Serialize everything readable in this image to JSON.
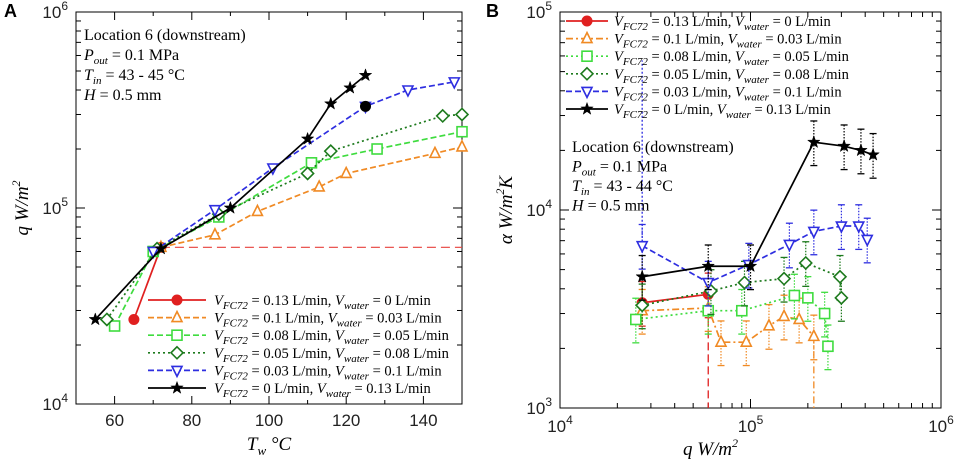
{
  "chart_data": [
    {
      "panel": "A",
      "type": "line",
      "xlabel": "T_w °C",
      "ylabel": "q W/m²",
      "xscale": "linear",
      "yscale": "log",
      "xlim": [
        50,
        150
      ],
      "ylim": [
        10000,
        1000000
      ],
      "xticks": [
        60,
        80,
        100,
        120,
        140
      ],
      "yticks": [
        10000,
        100000,
        1000000
      ],
      "ytick_labels": [
        {
          "base": "10",
          "exp": "4"
        },
        {
          "base": "10",
          "exp": "5"
        },
        {
          "base": "10",
          "exp": "6"
        }
      ],
      "annotation": [
        "Location 6 (downstream)",
        "P_out = 0.1 MPa",
        "T_in = 43 - 45 °C",
        "H = 0.5 mm"
      ],
      "annotation_parts": [
        [
          {
            "t": "Location 6 (downstream)"
          }
        ],
        [
          {
            "t": "P",
            "i": true
          },
          {
            "t": "out",
            "i": true,
            "sub": true
          },
          {
            "t": " = 0.1 MPa"
          }
        ],
        [
          {
            "t": "T",
            "i": true
          },
          {
            "t": "in",
            "i": true,
            "sub": true
          },
          {
            "t": " = 43 - 45 °C"
          }
        ],
        [
          {
            "t": "H",
            "i": true
          },
          {
            "t": " = 0.5 mm"
          }
        ]
      ],
      "reference_line": {
        "y": 63000,
        "x_from": 72,
        "x_to": 150,
        "color": "#e8413c"
      },
      "legend_position": "bottom-right",
      "series": [
        {
          "name": "V_FC72 = 0.13 L/min, V_water = 0 L/min",
          "color": "#e02020",
          "marker": "circle",
          "dash": "solid",
          "x": [
            65,
            72
          ],
          "y": [
            27000,
            63000
          ]
        },
        {
          "name": "V_FC72 = 0.1 L/min, V_water = 0.03 L/min",
          "color": "#f08a24",
          "marker": "triangle-up",
          "dash": "dash",
          "x": [
            72,
            86,
            97,
            113,
            120,
            143,
            150
          ],
          "y": [
            63000,
            73000,
            96000,
            128000,
            150000,
            190000,
            205000
          ]
        },
        {
          "name": "V_FC72 = 0.08 L/min, V_water = 0.05 L/min",
          "color": "#3fdc3f",
          "marker": "square",
          "dash": "dash",
          "x": [
            60,
            70,
            87,
            111,
            128,
            150
          ],
          "y": [
            25000,
            60000,
            90000,
            170000,
            200000,
            245000
          ]
        },
        {
          "name": "V_FC72 = 0.05 L/min, V_water = 0.08 L/min",
          "color": "#1d7a1d",
          "marker": "diamond",
          "dash": "dot",
          "x": [
            58,
            71,
            87,
            110,
            116,
            145,
            150
          ],
          "y": [
            27000,
            62000,
            93000,
            150000,
            195000,
            295000,
            300000
          ]
        },
        {
          "name": "V_FC72 = 0.03 L/min, V_water = 0.1 L/min",
          "color": "#2e2ee0",
          "marker": "triangle-down",
          "dash": "dash",
          "x": [
            70,
            86,
            101,
            125,
            136,
            148
          ],
          "y": [
            60000,
            98000,
            160000,
            330000,
            400000,
            440000
          ]
        },
        {
          "name": "V_FC72 = 0 L/min, V_water = 0.13 L/min",
          "color": "#000000",
          "marker": "star",
          "dash": "solid",
          "x": [
            55,
            72,
            90,
            110,
            116,
            121,
            125
          ],
          "y": [
            27000,
            62000,
            100000,
            225000,
            340000,
            410000,
            475000
          ]
        }
      ],
      "extra_points": [
        {
          "x": 125,
          "y": 330000,
          "color": "#000000",
          "marker": "circle"
        }
      ]
    },
    {
      "panel": "B",
      "type": "line",
      "xlabel": "q W/m²",
      "ylabel": "α W/m²K",
      "xscale": "log",
      "yscale": "log",
      "xlim": [
        10000,
        1000000
      ],
      "ylim": [
        1000,
        100000
      ],
      "xtick_labels": [
        {
          "base": "10",
          "exp": "4"
        },
        {
          "base": "10",
          "exp": "5"
        },
        {
          "base": "10",
          "exp": "6"
        }
      ],
      "ytick_labels": [
        {
          "base": "10",
          "exp": "3"
        },
        {
          "base": "10",
          "exp": "4"
        },
        {
          "base": "10",
          "exp": "5"
        }
      ],
      "annotation": [
        "Location 6 (downstream)",
        "P_out = 0.1 MPa",
        "T_in = 43 - 44 °C",
        "H = 0.5 mm"
      ],
      "annotation_parts": [
        [
          {
            "t": "Location 6 (downstream)"
          }
        ],
        [
          {
            "t": "P",
            "i": true
          },
          {
            "t": "out",
            "i": true,
            "sub": true
          },
          {
            "t": " = 0.1 MPa"
          }
        ],
        [
          {
            "t": "T",
            "i": true
          },
          {
            "t": "in",
            "i": true,
            "sub": true
          },
          {
            "t": " = 43 - 44 °C"
          }
        ],
        [
          {
            "t": "H",
            "i": true
          },
          {
            "t": " = 0.5 mm"
          }
        ]
      ],
      "legend_position": "top-left",
      "error_fraction": 0.28,
      "series": [
        {
          "name": "V_FC72 = 0.13 L/min, V_water = 0 L/min",
          "color": "#e02020",
          "marker": "circle",
          "dash": "solid",
          "x": [
            27000,
            60000
          ],
          "y": [
            3400,
            3750
          ],
          "drop": {
            "x": 60000,
            "from_y": 3750,
            "to_y": 1000
          }
        },
        {
          "name": "V_FC72 = 0.1 L/min, V_water = 0.03 L/min",
          "color": "#f08a24",
          "marker": "triangle-up",
          "dash": "dashdot",
          "x": [
            27000,
            60000,
            70000,
            95000,
            125000,
            150000,
            180000,
            215000
          ],
          "y": [
            3100,
            3200,
            2150,
            2150,
            2600,
            2900,
            2800,
            2300
          ],
          "drop": {
            "x": 215000,
            "from_y": 2300,
            "to_y": 1000
          }
        },
        {
          "name": "V_FC72 = 0.08 L/min, V_water = 0.05 L/min",
          "color": "#3fdc3f",
          "marker": "square",
          "dash": "dot",
          "x": [
            25000,
            60000,
            90000,
            170000,
            200000,
            245000,
            255000
          ],
          "y": [
            2800,
            3100,
            3100,
            3700,
            3600,
            3000,
            2050
          ]
        },
        {
          "name": "V_FC72 = 0.05 L/min, V_water = 0.08 L/min",
          "color": "#1d7a1d",
          "marker": "diamond",
          "dash": "dot",
          "x": [
            27000,
            62000,
            93000,
            150000,
            195000,
            295000,
            300000
          ],
          "y": [
            3300,
            3900,
            4300,
            4500,
            5400,
            4600,
            3600
          ]
        },
        {
          "name": "V_FC72 = 0.03 L/min, V_water = 0.1 L/min",
          "color": "#2e2ee0",
          "marker": "triangle-down",
          "dash": "dash",
          "x": [
            27000,
            60000,
            98000,
            160000,
            215000,
            300000,
            370000,
            410000
          ],
          "y": [
            6600,
            4300,
            5300,
            6700,
            7800,
            8300,
            8300,
            7100
          ],
          "rise": {
            "x": 27000,
            "from_y": 6600,
            "to_y": 57000
          }
        },
        {
          "name": "V_FC72 = 0 L/min, V_water = 0.13 L/min",
          "color": "#000000",
          "marker": "star",
          "dash": "solid",
          "x": [
            27000,
            60000,
            100000,
            215000,
            310000,
            380000,
            440000
          ],
          "y": [
            4600,
            5200,
            5200,
            22000,
            21000,
            20000,
            19000
          ]
        }
      ]
    }
  ]
}
